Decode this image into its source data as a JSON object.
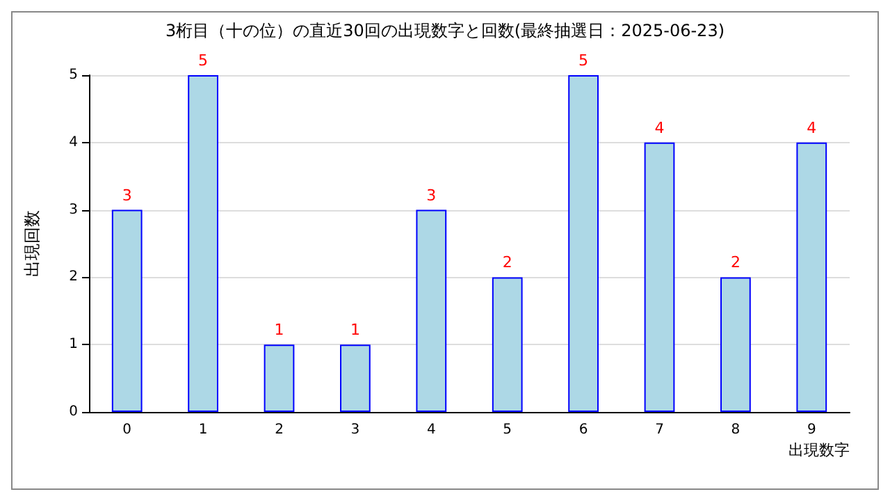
{
  "chart_data": {
    "type": "bar",
    "title": "3桁目（十の位）の直近30回の出現数字と回数(最終抽選日：2025-06-23)",
    "xlabel": "出現数字",
    "ylabel": "出現回数",
    "categories": [
      "0",
      "1",
      "2",
      "3",
      "4",
      "5",
      "6",
      "7",
      "8",
      "9"
    ],
    "values": [
      3,
      5,
      1,
      1,
      3,
      2,
      5,
      4,
      2,
      4
    ],
    "color": "#add8e6",
    "ylim": [
      0,
      5
    ],
    "yticks": [
      0,
      1,
      2,
      3,
      4,
      5
    ],
    "grid": "y",
    "data_labels": true
  }
}
